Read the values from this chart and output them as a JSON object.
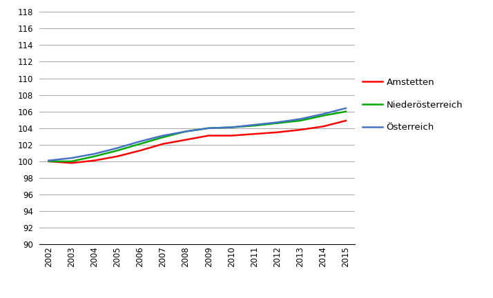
{
  "years": [
    2002,
    2003,
    2004,
    2005,
    2006,
    2007,
    2008,
    2009,
    2010,
    2011,
    2012,
    2013,
    2014,
    2015
  ],
  "amstetten": [
    100.0,
    99.8,
    100.1,
    100.6,
    101.3,
    102.1,
    102.6,
    103.1,
    103.1,
    103.3,
    103.5,
    103.8,
    104.2,
    104.9
  ],
  "niederoesterreich": [
    100.0,
    100.0,
    100.6,
    101.3,
    102.1,
    102.9,
    103.6,
    104.0,
    104.1,
    104.3,
    104.6,
    104.9,
    105.5,
    106.0
  ],
  "oesterreich": [
    100.1,
    100.4,
    100.9,
    101.6,
    102.4,
    103.1,
    103.6,
    104.0,
    104.1,
    104.4,
    104.7,
    105.1,
    105.7,
    106.4
  ],
  "colors": {
    "amstetten": "#ff0000",
    "niederoesterreich": "#00aa00",
    "oesterreich": "#4472c4"
  },
  "legend_labels": [
    "Amstetten",
    "Niederösterreich",
    "Österreich"
  ],
  "ylim": [
    90,
    118
  ],
  "yticks": [
    90,
    92,
    94,
    96,
    98,
    100,
    102,
    104,
    106,
    108,
    110,
    112,
    114,
    116,
    118
  ],
  "line_width": 1.8,
  "background_color": "#ffffff",
  "grid_color": "#999999"
}
